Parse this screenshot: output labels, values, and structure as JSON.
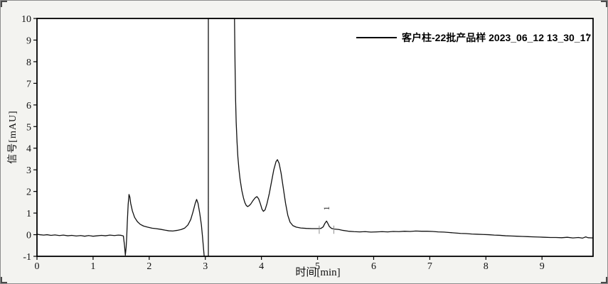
{
  "window": {
    "background": "#f3f3f0",
    "plot_background": "#ffffff",
    "frame_color": "#000000"
  },
  "legend": {
    "sample_label": "客户柱-22批产品样 2023_06_12 13_30_17",
    "trailing_dot": "."
  },
  "chart_data": {
    "type": "line",
    "title": "",
    "xlabel": "时间[min]",
    "ylabel": "信号[mAU]",
    "xlim": [
      0,
      9.91
    ],
    "ylim": [
      -1,
      10
    ],
    "x_ticks": [
      0,
      1,
      2,
      3,
      4,
      5,
      6,
      7,
      8,
      9
    ],
    "y_ticks": [
      -1,
      0,
      1,
      2,
      3,
      4,
      5,
      6,
      7,
      8,
      9,
      10
    ],
    "grid": false,
    "legend_position": "top-right",
    "trace_color": "#111111",
    "series_name": "客户柱-22批产品样 2023_06_12 13_30_17",
    "peaks": [
      {
        "label": "1",
        "time": 5.16,
        "height": 0.63
      }
    ],
    "peak_baseline_marks": [
      5.03,
      5.29
    ],
    "clipped_region": {
      "note": "trace off-scale low 2.98-3.05 min, off-scale high 3.05-3.52 min"
    },
    "points": [
      [
        0.0,
        0.02
      ],
      [
        0.05,
        0.0
      ],
      [
        0.12,
        -0.02
      ],
      [
        0.18,
        0.0
      ],
      [
        0.25,
        -0.03
      ],
      [
        0.32,
        -0.01
      ],
      [
        0.4,
        -0.04
      ],
      [
        0.47,
        -0.02
      ],
      [
        0.55,
        -0.05
      ],
      [
        0.62,
        -0.03
      ],
      [
        0.7,
        -0.06
      ],
      [
        0.78,
        -0.04
      ],
      [
        0.85,
        -0.07
      ],
      [
        0.92,
        -0.04
      ],
      [
        1.0,
        -0.07
      ],
      [
        1.08,
        -0.05
      ],
      [
        1.15,
        -0.03
      ],
      [
        1.22,
        -0.05
      ],
      [
        1.3,
        -0.02
      ],
      [
        1.38,
        -0.04
      ],
      [
        1.45,
        -0.02
      ],
      [
        1.5,
        -0.03
      ],
      [
        1.54,
        -0.06
      ],
      [
        1.56,
        -0.5
      ],
      [
        1.575,
        -0.95
      ],
      [
        1.59,
        -0.55
      ],
      [
        1.6,
        -0.05
      ],
      [
        1.61,
        0.6
      ],
      [
        1.625,
        1.4
      ],
      [
        1.64,
        1.86
      ],
      [
        1.655,
        1.74
      ],
      [
        1.67,
        1.45
      ],
      [
        1.7,
        1.1
      ],
      [
        1.74,
        0.8
      ],
      [
        1.79,
        0.6
      ],
      [
        1.84,
        0.48
      ],
      [
        1.9,
        0.4
      ],
      [
        1.97,
        0.35
      ],
      [
        2.05,
        0.3
      ],
      [
        2.12,
        0.28
      ],
      [
        2.2,
        0.25
      ],
      [
        2.28,
        0.21
      ],
      [
        2.35,
        0.18
      ],
      [
        2.42,
        0.17
      ],
      [
        2.5,
        0.2
      ],
      [
        2.57,
        0.24
      ],
      [
        2.63,
        0.3
      ],
      [
        2.69,
        0.45
      ],
      [
        2.74,
        0.7
      ],
      [
        2.78,
        1.05
      ],
      [
        2.82,
        1.45
      ],
      [
        2.845,
        1.63
      ],
      [
        2.87,
        1.45
      ],
      [
        2.9,
        1.0
      ],
      [
        2.93,
        0.45
      ],
      [
        2.95,
        -0.1
      ],
      [
        2.97,
        -0.7
      ],
      [
        2.98,
        -1.0
      ],
      [
        3.054,
        -1.0
      ],
      [
        3.054,
        10.0
      ],
      [
        3.52,
        10.0
      ],
      [
        3.53,
        7.8
      ],
      [
        3.54,
        6.2
      ],
      [
        3.55,
        5.2
      ],
      [
        3.565,
        4.3
      ],
      [
        3.58,
        3.6
      ],
      [
        3.6,
        3.0
      ],
      [
        3.62,
        2.55
      ],
      [
        3.65,
        2.05
      ],
      [
        3.68,
        1.7
      ],
      [
        3.705,
        1.48
      ],
      [
        3.73,
        1.35
      ],
      [
        3.755,
        1.3
      ],
      [
        3.78,
        1.34
      ],
      [
        3.81,
        1.42
      ],
      [
        3.85,
        1.58
      ],
      [
        3.89,
        1.71
      ],
      [
        3.92,
        1.76
      ],
      [
        3.95,
        1.66
      ],
      [
        3.98,
        1.44
      ],
      [
        4.01,
        1.18
      ],
      [
        4.035,
        1.08
      ],
      [
        4.065,
        1.15
      ],
      [
        4.1,
        1.45
      ],
      [
        4.14,
        1.9
      ],
      [
        4.18,
        2.45
      ],
      [
        4.22,
        3.0
      ],
      [
        4.26,
        3.38
      ],
      [
        4.285,
        3.47
      ],
      [
        4.315,
        3.3
      ],
      [
        4.35,
        2.85
      ],
      [
        4.39,
        2.15
      ],
      [
        4.43,
        1.45
      ],
      [
        4.47,
        0.9
      ],
      [
        4.51,
        0.58
      ],
      [
        4.56,
        0.42
      ],
      [
        4.62,
        0.35
      ],
      [
        4.7,
        0.31
      ],
      [
        4.8,
        0.29
      ],
      [
        4.9,
        0.28
      ],
      [
        5.0,
        0.28
      ],
      [
        5.06,
        0.29
      ],
      [
        5.1,
        0.36
      ],
      [
        5.13,
        0.52
      ],
      [
        5.16,
        0.63
      ],
      [
        5.18,
        0.54
      ],
      [
        5.21,
        0.38
      ],
      [
        5.25,
        0.29
      ],
      [
        5.3,
        0.26
      ],
      [
        5.38,
        0.24
      ],
      [
        5.45,
        0.2
      ],
      [
        5.55,
        0.16
      ],
      [
        5.65,
        0.14
      ],
      [
        5.75,
        0.13
      ],
      [
        5.85,
        0.14
      ],
      [
        5.95,
        0.12
      ],
      [
        6.05,
        0.13
      ],
      [
        6.15,
        0.14
      ],
      [
        6.25,
        0.13
      ],
      [
        6.35,
        0.15
      ],
      [
        6.45,
        0.14
      ],
      [
        6.55,
        0.16
      ],
      [
        6.65,
        0.15
      ],
      [
        6.75,
        0.17
      ],
      [
        6.85,
        0.16
      ],
      [
        6.95,
        0.16
      ],
      [
        7.05,
        0.15
      ],
      [
        7.15,
        0.13
      ],
      [
        7.25,
        0.12
      ],
      [
        7.35,
        0.1
      ],
      [
        7.45,
        0.08
      ],
      [
        7.55,
        0.06
      ],
      [
        7.65,
        0.05
      ],
      [
        7.75,
        0.03
      ],
      [
        7.85,
        0.02
      ],
      [
        7.95,
        0.01
      ],
      [
        8.05,
        0.0
      ],
      [
        8.15,
        -0.02
      ],
      [
        8.25,
        -0.03
      ],
      [
        8.35,
        -0.05
      ],
      [
        8.45,
        -0.06
      ],
      [
        8.55,
        -0.07
      ],
      [
        8.65,
        -0.08
      ],
      [
        8.75,
        -0.09
      ],
      [
        8.85,
        -0.1
      ],
      [
        8.95,
        -0.11
      ],
      [
        9.05,
        -0.12
      ],
      [
        9.15,
        -0.13
      ],
      [
        9.25,
        -0.13
      ],
      [
        9.35,
        -0.14
      ],
      [
        9.45,
        -0.12
      ],
      [
        9.55,
        -0.15
      ],
      [
        9.65,
        -0.13
      ],
      [
        9.72,
        -0.16
      ],
      [
        9.78,
        -0.1
      ],
      [
        9.82,
        -0.14
      ],
      [
        9.91,
        -0.15
      ]
    ]
  }
}
